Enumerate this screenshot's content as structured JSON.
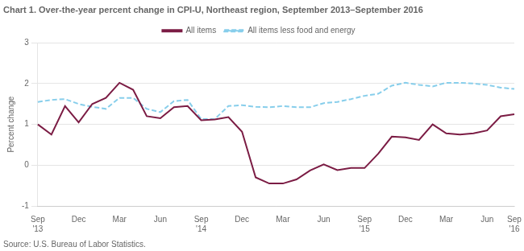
{
  "chart_data": {
    "type": "line",
    "title": "Chart 1. Over-the-year percent change in CPI-U, Northeast region, September 2013–September 2016",
    "ylabel": "Percent change",
    "annotations": [
      "Source: U.S. Bureau of Labor Statistics."
    ],
    "categories": [
      "Sep\n'13",
      null,
      null,
      "Dec",
      null,
      null,
      "Mar",
      null,
      null,
      "Jun",
      null,
      null,
      "Sep\n'14",
      null,
      null,
      "Dec",
      null,
      null,
      "Mar",
      null,
      null,
      "Jun",
      null,
      null,
      "Sep\n'15",
      null,
      null,
      "Dec",
      null,
      null,
      "Mar",
      null,
      null,
      "Jun",
      null,
      "Sep\n'16"
    ],
    "series": [
      {
        "name": "All items",
        "color": "#7B1C44",
        "line_style": "solid",
        "values": [
          1.0,
          0.75,
          1.45,
          1.05,
          1.5,
          1.65,
          2.02,
          1.85,
          1.2,
          1.15,
          1.42,
          1.45,
          1.1,
          1.12,
          1.18,
          0.82,
          -0.3,
          -0.45,
          -0.45,
          -0.35,
          -0.13,
          0.02,
          -0.12,
          -0.07,
          -0.07,
          0.28,
          0.7,
          0.68,
          0.62,
          1.0,
          0.78,
          0.75,
          0.78,
          0.85,
          1.2,
          1.25
        ]
      },
      {
        "name": "All items less food and energy",
        "color": "#87CEEB",
        "line_style": "dashed",
        "values": [
          1.55,
          1.6,
          1.62,
          1.5,
          1.43,
          1.38,
          1.65,
          1.65,
          1.38,
          1.3,
          1.57,
          1.6,
          1.13,
          1.13,
          1.45,
          1.47,
          1.43,
          1.42,
          1.45,
          1.42,
          1.42,
          1.52,
          1.55,
          1.62,
          1.7,
          1.75,
          1.95,
          2.02,
          1.97,
          1.93,
          2.02,
          2.02,
          2.0,
          1.97,
          1.9,
          1.87
        ]
      }
    ],
    "ylim": [
      -1.0,
      3.0
    ],
    "yticks": [
      -1,
      0,
      1,
      2,
      3
    ],
    "grid": true,
    "legend": "top"
  }
}
